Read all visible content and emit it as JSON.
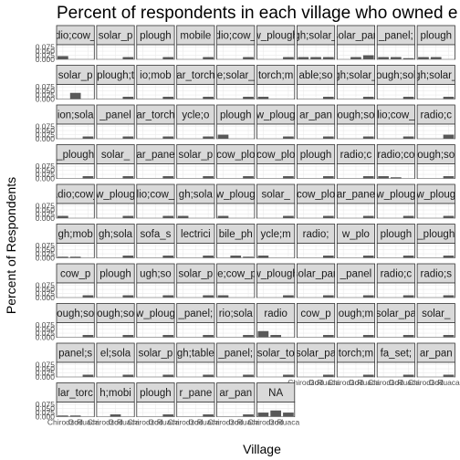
{
  "chart_data": {
    "type": "bar",
    "title": "Percent of respondents in each village who owned e",
    "xlabel": "Village",
    "ylabel": "Percent of Respondents",
    "x_tick_labels": [
      "Chirodzo",
      "God",
      "Ruaca"
    ],
    "y_tick_labels": [
      "0.075",
      "0.050",
      "0.025",
      "0.000"
    ],
    "ylim": [
      0,
      0.09
    ],
    "grid": true,
    "legend": "none",
    "colors": {
      "bar": "#595959",
      "panel": "#ffffff",
      "strip": "#d9d9d9",
      "grid": "#ebebeb",
      "border": "#333333"
    },
    "panels": [
      {
        "label": "adio;cow_p",
        "values": [
          0.02,
          0,
          0
        ]
      },
      {
        "label": "solar_p",
        "values": [
          0,
          0,
          0.014
        ]
      },
      {
        "label": "plough",
        "values": [
          0,
          0,
          0.014
        ]
      },
      {
        "label": "mobile",
        "values": [
          0,
          0,
          0.014
        ]
      },
      {
        "label": "adio;cow_p",
        "values": [
          0,
          0,
          0.014
        ]
      },
      {
        "label": "w_plough",
        "values": [
          0,
          0,
          0.014
        ]
      },
      {
        "label": "gh;solar_",
        "values": [
          0.014,
          0.014,
          0.014
        ]
      },
      {
        "label": "solar_pan",
        "values": [
          0,
          0.014,
          0.025
        ]
      },
      {
        "label": "_panel;",
        "values": [
          0.014,
          0.014,
          0.007
        ]
      },
      {
        "label": "plough",
        "values": [
          0.014,
          0.014,
          0
        ]
      },
      {
        "label": "solar_p",
        "values": [
          0,
          0.038,
          0
        ]
      },
      {
        "label": "plough;t",
        "values": [
          0,
          0,
          0.014
        ]
      },
      {
        "label": "io;mob",
        "values": [
          0,
          0,
          0.014
        ]
      },
      {
        "label": "ar_torch",
        "values": [
          0,
          0,
          0.014
        ]
      },
      {
        "label": "e;solar_",
        "values": [
          0,
          0,
          0.014
        ]
      },
      {
        "label": "torch;m",
        "values": [
          0.014,
          0,
          0
        ]
      },
      {
        "label": "able;so",
        "values": [
          0,
          0,
          0.014
        ]
      },
      {
        "label": "gh;solar_",
        "values": [
          0,
          0,
          0.014
        ]
      },
      {
        "label": "ough;sol",
        "values": [
          0,
          0,
          0.014
        ]
      },
      {
        "label": "gh;solar_",
        "values": [
          0,
          0,
          0.014
        ]
      },
      {
        "label": "ion;sola",
        "values": [
          0,
          0,
          0.014
        ]
      },
      {
        "label": "_panel",
        "values": [
          0,
          0,
          0.014
        ]
      },
      {
        "label": "ar_torch",
        "values": [
          0,
          0,
          0.014
        ]
      },
      {
        "label": "ycle;o",
        "values": [
          0,
          0,
          0.014
        ]
      },
      {
        "label": "plough",
        "values": [
          0.025,
          0,
          0
        ]
      },
      {
        "label": "w_ploug",
        "values": [
          0,
          0,
          0.014
        ]
      },
      {
        "label": "ar_pan",
        "values": [
          0,
          0,
          0.014
        ]
      },
      {
        "label": "ough;so",
        "values": [
          0,
          0,
          0.014
        ]
      },
      {
        "label": "lio;cow_",
        "values": [
          0,
          0,
          0.014
        ]
      },
      {
        "label": "radio;c",
        "values": [
          0,
          0,
          0.025
        ]
      },
      {
        "label": "_plough",
        "values": [
          0,
          0,
          0.014
        ]
      },
      {
        "label": "solar_",
        "values": [
          0,
          0,
          0.014
        ]
      },
      {
        "label": "ar_pane",
        "values": [
          0,
          0,
          0.014
        ]
      },
      {
        "label": "solar_p",
        "values": [
          0,
          0,
          0.014
        ]
      },
      {
        "label": "cow_plo",
        "values": [
          0,
          0,
          0.014
        ]
      },
      {
        "label": "cow_plo",
        "values": [
          0,
          0,
          0.014
        ]
      },
      {
        "label": "plough",
        "values": [
          0,
          0,
          0.014
        ]
      },
      {
        "label": "radio;c",
        "values": [
          0,
          0,
          0.014
        ]
      },
      {
        "label": "radio;co",
        "values": [
          0.014,
          0.007,
          0
        ]
      },
      {
        "label": "ough;so",
        "values": [
          0,
          0,
          0.014
        ]
      },
      {
        "label": "adio;cow_",
        "values": [
          0.014,
          0,
          0
        ]
      },
      {
        "label": "w_ploug",
        "values": [
          0,
          0,
          0.014
        ]
      },
      {
        "label": "lio;cow_",
        "values": [
          0,
          0,
          0.014
        ]
      },
      {
        "label": "gh;sola",
        "values": [
          0.014,
          0,
          0
        ]
      },
      {
        "label": "w_ploug",
        "values": [
          0.014,
          0,
          0
        ]
      },
      {
        "label": "solar_",
        "values": [
          0,
          0,
          0.014
        ]
      },
      {
        "label": "cow_plo",
        "values": [
          0,
          0,
          0.014
        ]
      },
      {
        "label": "ar_pane",
        "values": [
          0,
          0,
          0.014
        ]
      },
      {
        "label": "w_ploug",
        "values": [
          0,
          0,
          0.014
        ]
      },
      {
        "label": "w_ploug",
        "values": [
          0,
          0,
          0.014
        ]
      },
      {
        "label": "gh;mob",
        "values": [
          0.007,
          0.007,
          0
        ]
      },
      {
        "label": "gh;sola",
        "values": [
          0,
          0,
          0.014
        ]
      },
      {
        "label": "sofa_s",
        "values": [
          0,
          0,
          0.014
        ]
      },
      {
        "label": "lectrici",
        "values": [
          0,
          0,
          0.014
        ]
      },
      {
        "label": "bile_ph",
        "values": [
          0,
          0.014,
          0.007
        ]
      },
      {
        "label": "ycle;m",
        "values": [
          0.014,
          0,
          0
        ]
      },
      {
        "label": "radio;",
        "values": [
          0,
          0,
          0.014
        ]
      },
      {
        "label": "w_plo",
        "values": [
          0,
          0,
          0.014
        ]
      },
      {
        "label": "plough",
        "values": [
          0,
          0,
          0.014
        ]
      },
      {
        "label": "_plough",
        "values": [
          0,
          0,
          0.014
        ]
      },
      {
        "label": "cow_p",
        "values": [
          0,
          0,
          0.014
        ]
      },
      {
        "label": "plough",
        "values": [
          0,
          0,
          0.014
        ]
      },
      {
        "label": "ugh;so",
        "values": [
          0,
          0,
          0.014
        ]
      },
      {
        "label": "solar_p",
        "values": [
          0,
          0,
          0.014
        ]
      },
      {
        "label": "le;cow_p",
        "values": [
          0.014,
          0,
          0
        ]
      },
      {
        "label": "w_plough",
        "values": [
          0,
          0,
          0.014
        ]
      },
      {
        "label": "solar_pan",
        "values": [
          0,
          0,
          0.014
        ]
      },
      {
        "label": "_panel",
        "values": [
          0,
          0,
          0.014
        ]
      },
      {
        "label": "radio;c",
        "values": [
          0,
          0,
          0.014
        ]
      },
      {
        "label": "radio;s",
        "values": [
          0,
          0,
          0.014
        ]
      },
      {
        "label": "ough;so",
        "values": [
          0,
          0,
          0.014
        ]
      },
      {
        "label": "ough;so",
        "values": [
          0,
          0,
          0.014
        ]
      },
      {
        "label": "w_ploug",
        "values": [
          0,
          0,
          0.014
        ]
      },
      {
        "label": "_panel;",
        "values": [
          0,
          0,
          0.014
        ]
      },
      {
        "label": "rio;sola",
        "values": [
          0,
          0,
          0.014
        ]
      },
      {
        "label": "radio",
        "values": [
          0.038,
          0.014,
          0
        ]
      },
      {
        "label": "cow_p",
        "values": [
          0,
          0,
          0.014
        ]
      },
      {
        "label": "ough;m",
        "values": [
          0,
          0,
          0.014
        ]
      },
      {
        "label": "solar_pa",
        "values": [
          0,
          0,
          0.014
        ]
      },
      {
        "label": "solar_",
        "values": [
          0,
          0,
          0.014
        ]
      },
      {
        "label": "panel;s",
        "values": [
          0,
          0,
          0.014
        ]
      },
      {
        "label": "el;sola",
        "values": [
          0,
          0,
          0.014
        ]
      },
      {
        "label": "solar_p",
        "values": [
          0,
          0,
          0.014
        ]
      },
      {
        "label": "gh;table",
        "values": [
          0,
          0,
          0.014
        ]
      },
      {
        "label": "_panel;",
        "values": [
          0,
          0,
          0.014
        ]
      },
      {
        "label": "solar_to",
        "values": [
          0,
          0,
          0.014
        ]
      },
      {
        "label": "solar_pa",
        "values": [
          0,
          0,
          0.014
        ]
      },
      {
        "label": "torch;m",
        "values": [
          0,
          0,
          0.014
        ]
      },
      {
        "label": "fa_set;",
        "values": [
          0,
          0,
          0.014
        ]
      },
      {
        "label": "ar_pan",
        "values": [
          0,
          0,
          0.014
        ]
      },
      {
        "label": "lar_torc",
        "values": [
          0.007,
          0.007,
          0
        ]
      },
      {
        "label": "h;mobi",
        "values": [
          0,
          0.014,
          0
        ]
      },
      {
        "label": "plough",
        "values": [
          0,
          0,
          0.014
        ]
      },
      {
        "label": "r_pane",
        "values": [
          0,
          0,
          0.014
        ]
      },
      {
        "label": "ar_pan",
        "values": [
          0,
          0,
          0.014
        ]
      },
      {
        "label": "NA",
        "values": [
          0.025,
          0.038,
          0.025
        ]
      }
    ]
  }
}
